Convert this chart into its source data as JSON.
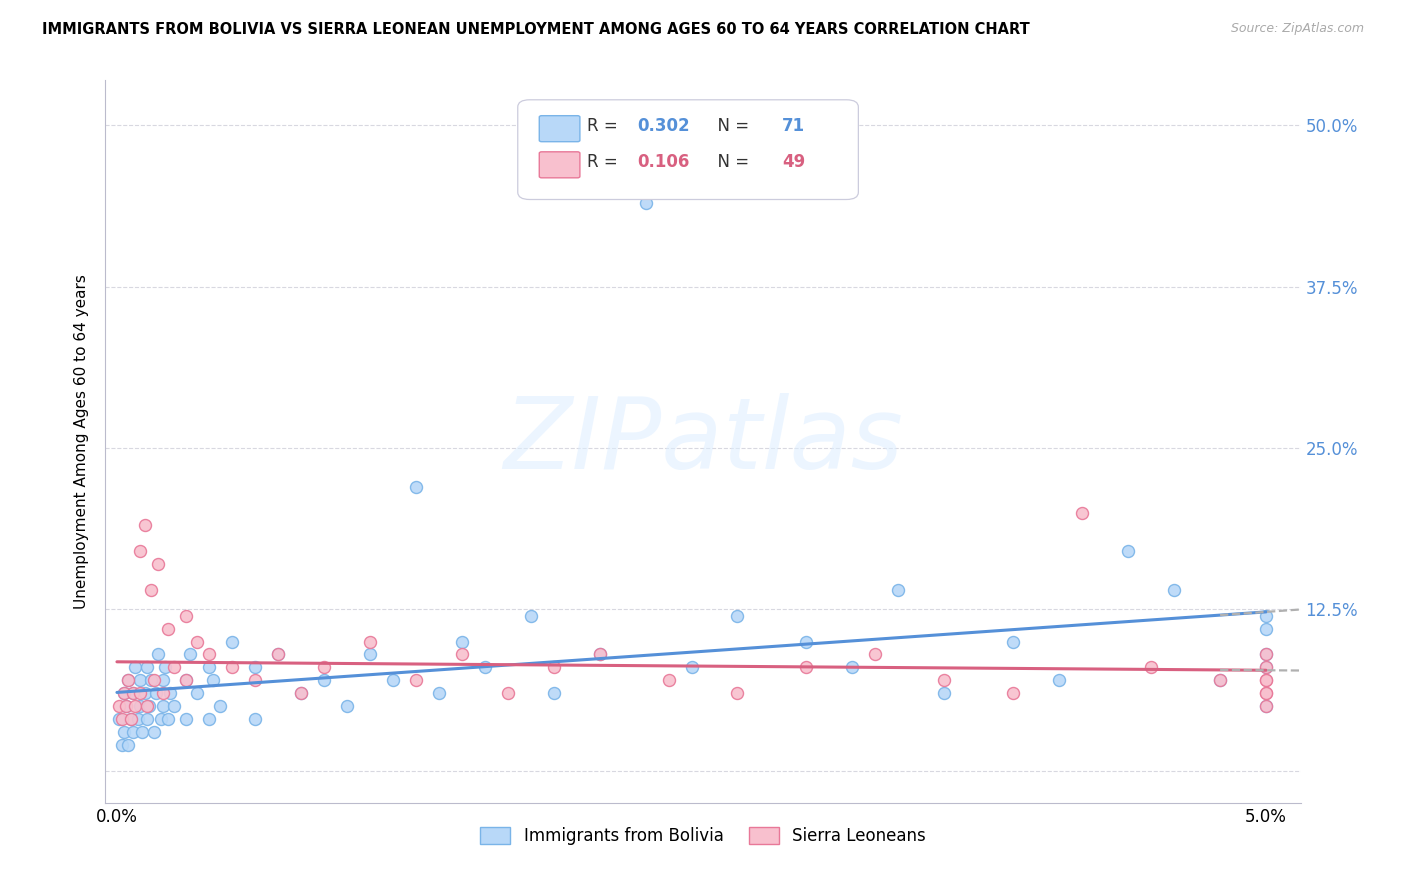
{
  "title": "IMMIGRANTS FROM BOLIVIA VS SIERRA LEONEAN UNEMPLOYMENT AMONG AGES 60 TO 64 YEARS CORRELATION CHART",
  "source": "Source: ZipAtlas.com",
  "ylabel": "Unemployment Among Ages 60 to 64 years",
  "legend_bolivia_r": "0.302",
  "legend_bolivia_n": "71",
  "legend_sierra_r": "0.106",
  "legend_sierra_n": "49",
  "color_bolivia_fill": "#b8d8f8",
  "color_bolivia_edge": "#7ab4e8",
  "color_sierra_fill": "#f8c0ce",
  "color_sierra_edge": "#e87898",
  "color_bolivia_trend": "#5590d8",
  "color_sierra_trend": "#d86080",
  "color_dash": "#b0b0b0",
  "color_grid": "#d8d8e0",
  "color_right_yaxis": "#5590d8",
  "watermark_color": "#ddeeff",
  "x_min": -0.0005,
  "x_max": 0.0515,
  "y_min": -0.025,
  "y_max": 0.535,
  "y_ticks": [
    0.0,
    0.125,
    0.25,
    0.375,
    0.5
  ],
  "x_tick_positions": [
    0.0,
    0.0125,
    0.025,
    0.0375,
    0.05
  ],
  "x_tick_labels": [
    "0.0%",
    "",
    "",
    "",
    "5.0%"
  ],
  "y_tick_labels_right": [
    "",
    "12.5%",
    "25.0%",
    "37.5%",
    "50.0%"
  ],
  "bolivia_x": [
    0.0001,
    0.0002,
    0.0003,
    0.0003,
    0.0004,
    0.0005,
    0.0005,
    0.0006,
    0.0007,
    0.0007,
    0.0008,
    0.0009,
    0.001,
    0.001,
    0.0011,
    0.0012,
    0.0013,
    0.0013,
    0.0014,
    0.0015,
    0.0016,
    0.0017,
    0.0018,
    0.0019,
    0.002,
    0.002,
    0.0021,
    0.0022,
    0.0023,
    0.0025,
    0.003,
    0.003,
    0.0032,
    0.0035,
    0.004,
    0.004,
    0.0042,
    0.0045,
    0.005,
    0.006,
    0.006,
    0.007,
    0.008,
    0.009,
    0.01,
    0.011,
    0.012,
    0.013,
    0.014,
    0.015,
    0.016,
    0.018,
    0.019,
    0.021,
    0.023,
    0.025,
    0.027,
    0.03,
    0.032,
    0.034,
    0.036,
    0.039,
    0.041,
    0.044,
    0.046,
    0.048,
    0.05,
    0.05,
    0.05,
    0.05,
    0.05
  ],
  "bolivia_y": [
    0.04,
    0.02,
    0.06,
    0.03,
    0.05,
    0.07,
    0.02,
    0.04,
    0.06,
    0.03,
    0.08,
    0.04,
    0.05,
    0.07,
    0.03,
    0.06,
    0.04,
    0.08,
    0.05,
    0.07,
    0.03,
    0.06,
    0.09,
    0.04,
    0.07,
    0.05,
    0.08,
    0.04,
    0.06,
    0.05,
    0.07,
    0.04,
    0.09,
    0.06,
    0.08,
    0.04,
    0.07,
    0.05,
    0.1,
    0.08,
    0.04,
    0.09,
    0.06,
    0.07,
    0.05,
    0.09,
    0.07,
    0.22,
    0.06,
    0.1,
    0.08,
    0.12,
    0.06,
    0.09,
    0.44,
    0.08,
    0.12,
    0.1,
    0.08,
    0.14,
    0.06,
    0.1,
    0.07,
    0.17,
    0.14,
    0.07,
    0.12,
    0.09,
    0.05,
    0.08,
    0.11
  ],
  "sierra_x": [
    0.0001,
    0.0002,
    0.0003,
    0.0004,
    0.0005,
    0.0006,
    0.0007,
    0.0008,
    0.001,
    0.001,
    0.0012,
    0.0013,
    0.0015,
    0.0016,
    0.0018,
    0.002,
    0.0022,
    0.0025,
    0.003,
    0.003,
    0.0035,
    0.004,
    0.005,
    0.006,
    0.007,
    0.008,
    0.009,
    0.011,
    0.013,
    0.015,
    0.017,
    0.019,
    0.021,
    0.024,
    0.027,
    0.03,
    0.033,
    0.036,
    0.039,
    0.042,
    0.045,
    0.048,
    0.05,
    0.05,
    0.05,
    0.05,
    0.05,
    0.05,
    0.05
  ],
  "sierra_y": [
    0.05,
    0.04,
    0.06,
    0.05,
    0.07,
    0.04,
    0.06,
    0.05,
    0.17,
    0.06,
    0.19,
    0.05,
    0.14,
    0.07,
    0.16,
    0.06,
    0.11,
    0.08,
    0.12,
    0.07,
    0.1,
    0.09,
    0.08,
    0.07,
    0.09,
    0.06,
    0.08,
    0.1,
    0.07,
    0.09,
    0.06,
    0.08,
    0.09,
    0.07,
    0.06,
    0.08,
    0.09,
    0.07,
    0.06,
    0.2,
    0.08,
    0.07,
    0.09,
    0.06,
    0.07,
    0.08,
    0.05,
    0.07,
    0.06
  ]
}
